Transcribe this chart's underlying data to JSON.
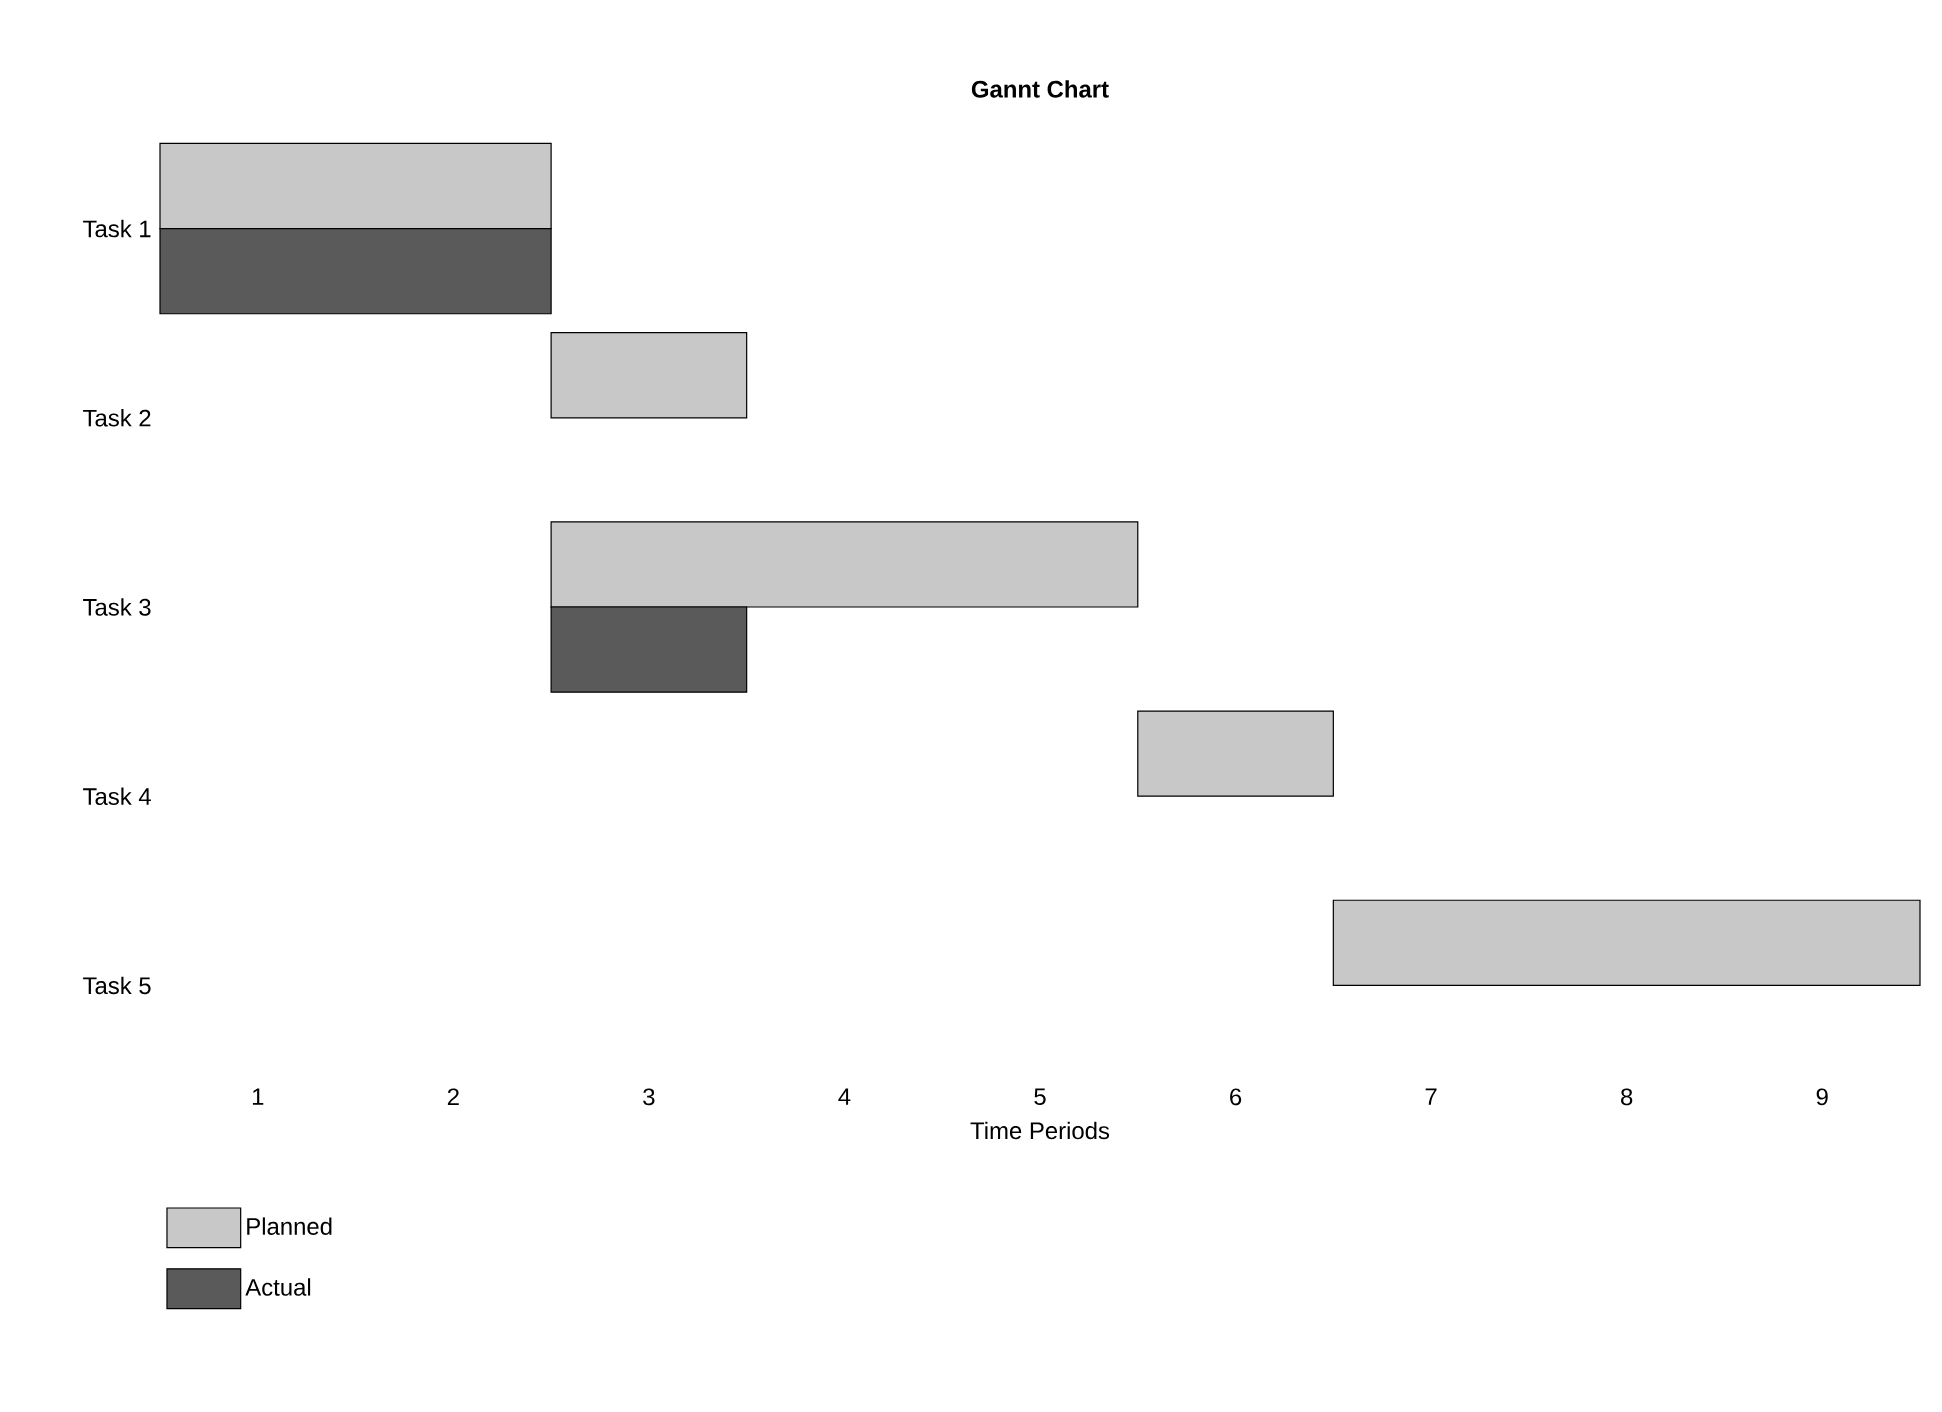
{
  "chart_data": {
    "type": "bar",
    "orientation": "horizontal",
    "title": "Gannt Chart",
    "xlabel": "Time Periods",
    "categories": [
      "Task 1",
      "Task 2",
      "Task 3",
      "Task 4",
      "Task 5"
    ],
    "series": [
      {
        "name": "Planned",
        "color": "#c8c8c8",
        "base": [
          0.5,
          2.5,
          2.5,
          5.5,
          6.5
        ],
        "values": [
          2,
          1,
          3,
          1,
          3
        ]
      },
      {
        "name": "Actual",
        "color": "#5a5a5a",
        "base": [
          0.5,
          null,
          2.5,
          null,
          null
        ],
        "values": [
          2,
          null,
          1,
          null,
          null
        ]
      }
    ],
    "xlim": [
      0.5,
      9.5
    ],
    "xticks": [
      1,
      2,
      3,
      4,
      5,
      6,
      7,
      8,
      9
    ],
    "grid": false,
    "legend": "bottom left"
  }
}
